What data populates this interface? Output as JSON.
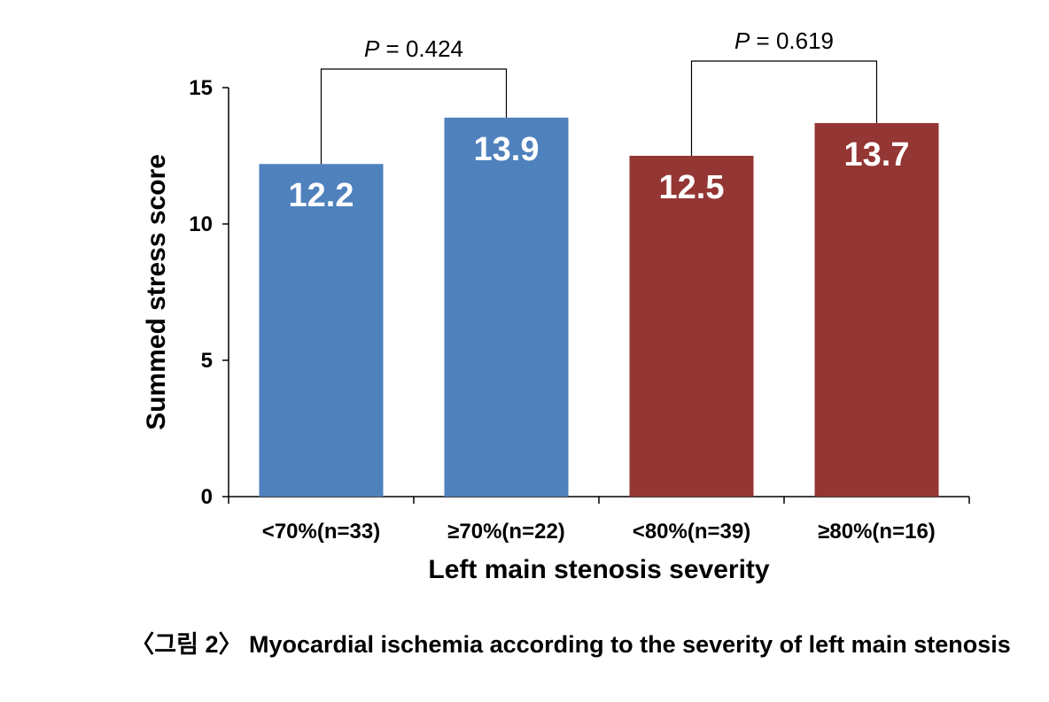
{
  "chart_data": {
    "type": "bar",
    "title": "",
    "xlabel": "Left main stenosis severity",
    "ylabel": "Summed stress score",
    "ylim": [
      0,
      15
    ],
    "yticks": [
      0,
      5,
      10,
      15
    ],
    "grid": false,
    "categories": [
      "<70%(n=33)",
      "≥70%(n=22)",
      "<80%(n=39)",
      "≥80%(n=16)"
    ],
    "values": [
      12.2,
      13.9,
      12.5,
      13.7
    ],
    "value_labels": [
      "12.2",
      "13.9",
      "12.5",
      "13.7"
    ],
    "colors": [
      "#4F81BD",
      "#4F81BD",
      "#943634",
      "#943634"
    ],
    "annotations": [
      {
        "between": [
          0,
          1
        ],
        "p_label": "P",
        "p_value": " = 0.424"
      },
      {
        "between": [
          2,
          3
        ],
        "p_label": "P",
        "p_value": " = 0.619"
      }
    ]
  },
  "caption": "〈그림 2〉 Myocardial ischemia according to the severity of left main stenosis"
}
